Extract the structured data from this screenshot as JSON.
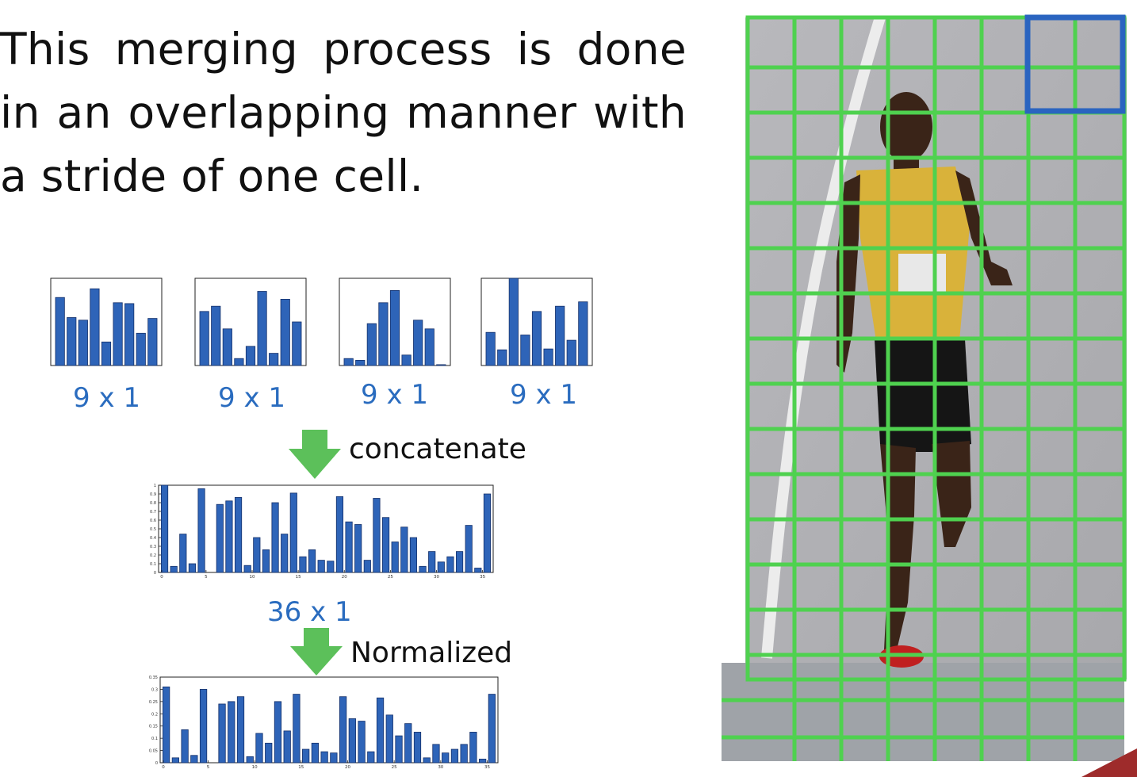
{
  "headline": "This merging process is done in an overlapping manner with a stride of one cell.",
  "histograms": [
    {
      "values": [
        0.78,
        0.55,
        0.52,
        0.88,
        0.27,
        0.72,
        0.71,
        0.37,
        0.54
      ],
      "label": "9 x 1"
    },
    {
      "values": [
        0.62,
        0.68,
        0.42,
        0.08,
        0.22,
        0.85,
        0.14,
        0.76,
        0.5
      ],
      "label": "9 x 1"
    },
    {
      "values": [
        0.08,
        0.06,
        0.48,
        0.72,
        0.86,
        0.12,
        0.52,
        0.42,
        0.01
      ],
      "label": "9 x 1"
    },
    {
      "values": [
        0.38,
        0.18,
        1.0,
        0.35,
        0.62,
        0.19,
        0.68,
        0.29,
        0.73
      ],
      "label": "9 x 1"
    }
  ],
  "concat_label": "concatenate",
  "concat_dim_label": "36 x 1",
  "concat_chart": {
    "type": "bar",
    "values": [
      1.0,
      0.07,
      0.44,
      0.1,
      0.96,
      0.0,
      0.78,
      0.82,
      0.86,
      0.08,
      0.4,
      0.26,
      0.8,
      0.44,
      0.91,
      0.18,
      0.26,
      0.14,
      0.13,
      0.87,
      0.58,
      0.55,
      0.14,
      0.85,
      0.63,
      0.35,
      0.52,
      0.4,
      0.07,
      0.24,
      0.12,
      0.18,
      0.24,
      0.54,
      0.05,
      0.9
    ],
    "ylim": [
      0,
      1
    ],
    "yticks": [
      "0",
      "0.1",
      "0.2",
      "0.3",
      "0.4",
      "0.5",
      "0.6",
      "0.7",
      "0.8",
      "0.9",
      "1"
    ],
    "xticks": [
      "0",
      "5",
      "10",
      "15",
      "20",
      "25",
      "30",
      "35"
    ]
  },
  "normalized_label": "Normalized",
  "normalized_chart": {
    "type": "bar",
    "values": [
      0.31,
      0.02,
      0.135,
      0.03,
      0.3,
      0.0,
      0.24,
      0.25,
      0.27,
      0.025,
      0.12,
      0.08,
      0.25,
      0.13,
      0.28,
      0.055,
      0.08,
      0.045,
      0.04,
      0.27,
      0.18,
      0.17,
      0.045,
      0.265,
      0.195,
      0.11,
      0.16,
      0.125,
      0.02,
      0.075,
      0.04,
      0.055,
      0.075,
      0.125,
      0.015,
      0.28
    ],
    "ylim": [
      0,
      0.35
    ],
    "yticks": [
      "0",
      "0.05",
      "0.1",
      "0.15",
      "0.2",
      "0.25",
      "0.3",
      "0.35"
    ],
    "xticks": [
      "0",
      "5",
      "10",
      "15",
      "20",
      "25",
      "30",
      "35"
    ]
  },
  "colors": {
    "bar": "#2e64b8",
    "bar_edge": "#14306a",
    "arrow": "#5cc05a",
    "grid": "#4fd14f",
    "block": "#2a64c0",
    "dim_text": "#2a6cbf",
    "accent": "#9e2b2b"
  },
  "photo": {
    "description_icon": "sprinter-photo-with-hog-cell-grid",
    "grid_cols": 8,
    "grid_rows": 16
  }
}
